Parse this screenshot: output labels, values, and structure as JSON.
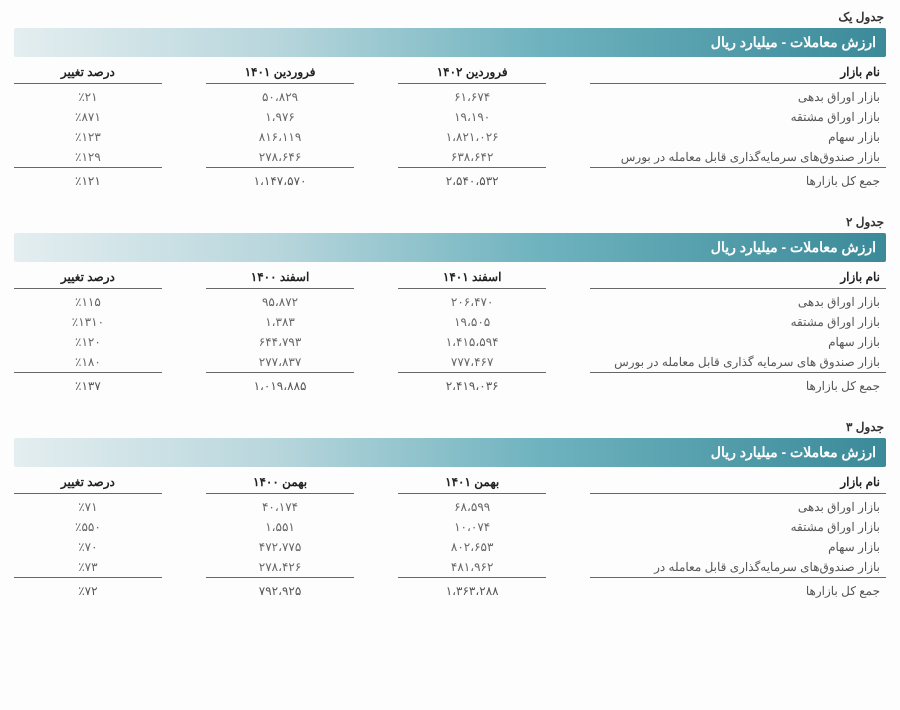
{
  "tables": [
    {
      "label": "جدول یک",
      "title": "ارزش معاملات - میلیارد ریال",
      "headers": {
        "name": "نام بازار",
        "col1": "فروردین ۱۴۰۲",
        "col2": "فروردین ۱۴۰۱",
        "col3": "درصد تغییر"
      },
      "rows": [
        {
          "name": "بازار اوراق بدهی",
          "c1": "۶۱،۶۷۴",
          "c2": "۵۰،۸۲۹",
          "c3": "٪۲۱"
        },
        {
          "name": "بازار اوراق مشتقه",
          "c1": "۱۹،۱۹۰",
          "c2": "۱،۹۷۶",
          "c3": "٪۸۷۱"
        },
        {
          "name": "بازار سهام",
          "c1": "۱،۸۲۱،۰۲۶",
          "c2": "۸۱۶،۱۱۹",
          "c3": "٪۱۲۳"
        },
        {
          "name": "بازار صندوق‌های سرمایه‌گذاری قابل معامله در بورس",
          "c1": "۶۳۸،۶۴۲",
          "c2": "۲۷۸،۶۴۶",
          "c3": "٪۱۲۹"
        }
      ],
      "total": {
        "name": "جمع کل بازارها",
        "c1": "۲،۵۴۰،۵۳۲",
        "c2": "۱،۱۴۷،۵۷۰",
        "c3": "٪۱۲۱"
      }
    },
    {
      "label": "جدول ۲",
      "title": "ارزش معاملات - میلیارد ریال",
      "headers": {
        "name": "نام بازار",
        "col1": "اسفند ۱۴۰۱",
        "col2": "اسفند ۱۴۰۰",
        "col3": "درصد تغییر"
      },
      "rows": [
        {
          "name": "بازار اوراق بدهی",
          "c1": "۲۰۶،۴۷۰",
          "c2": "۹۵،۸۷۲",
          "c3": "٪۱۱۵"
        },
        {
          "name": "بازار اوراق مشتقه",
          "c1": "۱۹،۵۰۵",
          "c2": "۱،۳۸۳",
          "c3": "٪۱۳۱۰"
        },
        {
          "name": "بازار سهام",
          "c1": "۱،۴۱۵،۵۹۴",
          "c2": "۶۴۴،۷۹۳",
          "c3": "٪۱۲۰"
        },
        {
          "name": "بازار صندوق های سرمایه گذاری قابل معامله در بورس",
          "c1": "۷۷۷،۴۶۷",
          "c2": "۲۷۷،۸۳۷",
          "c3": "٪۱۸۰"
        }
      ],
      "total": {
        "name": "جمع کل بازارها",
        "c1": "۲،۴۱۹،۰۳۶",
        "c2": "۱،۰۱۹،۸۸۵",
        "c3": "٪۱۳۷"
      }
    },
    {
      "label": "جدول ۳",
      "title": "ارزش معاملات - میلیارد ریال",
      "headers": {
        "name": "نام بازار",
        "col1": "بهمن ۱۴۰۱",
        "col2": "بهمن ۱۴۰۰",
        "col3": "درصد تغییر"
      },
      "rows": [
        {
          "name": "بازار اوراق بدهی",
          "c1": "۶۸،۵۹۹",
          "c2": "۴۰،۱۷۴",
          "c3": "٪۷۱"
        },
        {
          "name": "بازار اوراق مشتقه",
          "c1": "۱۰،۰۷۴",
          "c2": "۱،۵۵۱",
          "c3": "٪۵۵۰"
        },
        {
          "name": "بازار سهام",
          "c1": "۸۰۲،۶۵۳",
          "c2": "۴۷۲،۷۷۵",
          "c3": "٪۷۰"
        },
        {
          "name": "بازار صندوق‌های سرمایه‌گذاری قابل معامله در",
          "c1": "۴۸۱،۹۶۲",
          "c2": "۲۷۸،۴۲۶",
          "c3": "٪۷۳"
        }
      ],
      "total": {
        "name": "جمع کل بازارها",
        "c1": "۱،۳۶۳،۲۸۸",
        "c2": "۷۹۲،۹۲۵",
        "c3": "٪۷۲"
      }
    }
  ]
}
